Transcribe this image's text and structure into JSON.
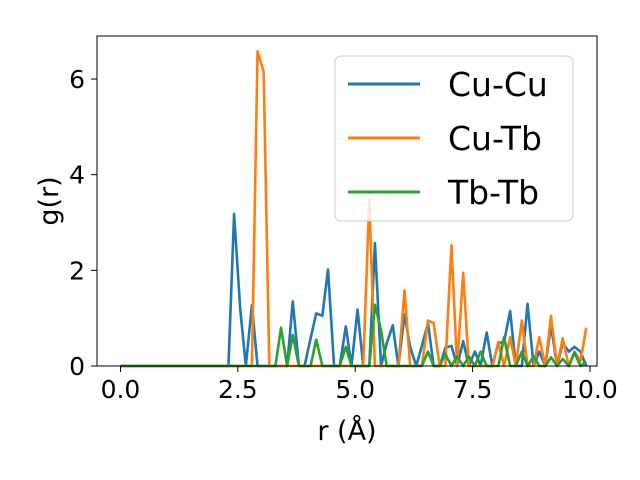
{
  "chart_data": {
    "type": "line",
    "xlabel": "r (Å)",
    "ylabel": "g(r)",
    "xlim": [
      -0.5,
      10.15
    ],
    "ylim": [
      0,
      6.9
    ],
    "xticks": [
      0.0,
      2.5,
      5.0,
      7.5,
      10.0
    ],
    "xtick_labels": [
      "0.0",
      "2.5",
      "5.0",
      "7.5",
      "10.0"
    ],
    "yticks": [
      0,
      2,
      4,
      6
    ],
    "ytick_labels": [
      "0",
      "2",
      "4",
      "6"
    ],
    "grid": false,
    "legend_position": "top-right",
    "series": [
      {
        "name": "Cu-Cu",
        "color": "#1f77b4",
        "x": [
          0.0,
          2.3,
          2.42,
          2.55,
          2.67,
          2.8,
          2.92,
          3.05,
          3.17,
          3.3,
          3.42,
          3.55,
          3.67,
          3.8,
          3.92,
          4.05,
          4.17,
          4.3,
          4.42,
          4.55,
          4.67,
          4.8,
          4.92,
          5.05,
          5.17,
          5.3,
          5.42,
          5.55,
          5.67,
          5.8,
          5.92,
          6.05,
          6.17,
          6.3,
          6.42,
          6.55,
          6.67,
          6.8,
          6.92,
          7.05,
          7.17,
          7.3,
          7.42,
          7.55,
          7.67,
          7.8,
          7.92,
          8.05,
          8.17,
          8.3,
          8.42,
          8.55,
          8.67,
          8.8,
          8.92,
          9.05,
          9.17,
          9.3,
          9.42,
          9.55,
          9.67,
          9.8,
          9.92
        ],
        "y": [
          0.0,
          0.0,
          3.18,
          1.2,
          0.0,
          1.27,
          0.0,
          0.0,
          0.0,
          0.0,
          0.0,
          0.0,
          1.35,
          0.0,
          0.0,
          0.58,
          1.1,
          1.05,
          2.02,
          0.0,
          0.0,
          0.83,
          0.0,
          1.18,
          0.0,
          0.0,
          2.57,
          0.0,
          0.47,
          0.85,
          0.0,
          1.08,
          0.4,
          0.0,
          0.42,
          0.9,
          0.0,
          0.0,
          0.38,
          0.42,
          0.0,
          0.52,
          0.0,
          0.3,
          0.0,
          0.7,
          0.0,
          0.48,
          0.5,
          1.15,
          0.0,
          0.0,
          1.3,
          0.0,
          0.3,
          0.0,
          0.85,
          0.0,
          0.48,
          0.3,
          0.4,
          0.3,
          0.0
        ]
      },
      {
        "name": "Cu-Tb",
        "color": "#ff7f0e",
        "x": [
          0.0,
          2.8,
          2.92,
          3.05,
          3.17,
          3.3,
          4.8,
          4.92,
          5.05,
          5.17,
          5.3,
          5.42,
          5.55,
          5.67,
          5.8,
          5.92,
          6.05,
          6.17,
          6.3,
          6.42,
          6.55,
          6.67,
          6.8,
          6.92,
          7.05,
          7.17,
          7.3,
          7.42,
          7.55,
          7.67,
          7.8,
          7.92,
          8.05,
          8.17,
          8.3,
          8.42,
          8.55,
          8.67,
          8.8,
          8.92,
          9.05,
          9.17,
          9.3,
          9.42,
          9.55,
          9.67,
          9.8,
          9.92
        ],
        "y": [
          0.0,
          0.0,
          6.58,
          6.15,
          0.0,
          0.0,
          0.0,
          0.0,
          0.0,
          0.0,
          3.47,
          0.0,
          0.0,
          0.0,
          0.0,
          0.0,
          1.58,
          0.0,
          0.0,
          0.0,
          0.95,
          0.9,
          0.0,
          0.0,
          2.52,
          0.0,
          1.95,
          0.0,
          0.0,
          0.0,
          0.0,
          0.0,
          0.5,
          0.0,
          0.6,
          0.0,
          0.95,
          0.0,
          0.0,
          0.6,
          0.0,
          1.05,
          0.0,
          0.58,
          0.0,
          0.3,
          0.1,
          0.8
        ]
      },
      {
        "name": "Tb-Tb",
        "color": "#2ca02c",
        "x": [
          0.0,
          3.3,
          3.42,
          3.55,
          3.67,
          3.8,
          3.92,
          4.05,
          4.17,
          4.3,
          4.42,
          4.55,
          4.67,
          4.8,
          4.92,
          5.05,
          5.17,
          5.3,
          5.42,
          5.55,
          5.67,
          5.8,
          5.92,
          6.05,
          6.17,
          6.3,
          6.42,
          6.55,
          6.67,
          6.8,
          6.92,
          7.05,
          7.17,
          7.3,
          7.42,
          7.55,
          7.67,
          7.8,
          7.92,
          8.05,
          8.17,
          8.3,
          8.42,
          8.55,
          8.67,
          8.8,
          8.92,
          9.05,
          9.17,
          9.3,
          9.42,
          9.55,
          9.67,
          9.8,
          9.92
        ],
        "y": [
          0.0,
          0.0,
          0.8,
          0.0,
          0.65,
          0.0,
          0.0,
          0.0,
          0.55,
          0.0,
          0.0,
          0.0,
          0.0,
          0.4,
          0.0,
          0.0,
          0.0,
          0.0,
          1.28,
          0.75,
          0.0,
          0.0,
          0.0,
          0.0,
          0.0,
          0.0,
          0.0,
          0.3,
          0.0,
          0.0,
          0.25,
          0.0,
          0.2,
          0.0,
          0.2,
          0.0,
          0.3,
          0.0,
          0.0,
          0.0,
          0.6,
          0.0,
          0.0,
          0.3,
          0.0,
          0.2,
          0.0,
          0.0,
          0.18,
          0.0,
          0.15,
          0.0,
          0.28,
          0.0,
          0.1
        ]
      }
    ]
  }
}
